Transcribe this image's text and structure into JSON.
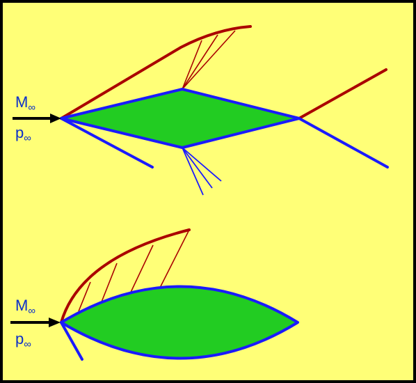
{
  "colors": {
    "background": "#ffff77",
    "border": "#000000",
    "body_fill": "#22cc22",
    "body_outline": "#1a1aff",
    "shock": "#aa0000",
    "expansion": "#1a1aff",
    "arrow": "#000000",
    "label": "#0b2fc9"
  },
  "panels": [
    {
      "id": "diamond-airfoil",
      "labels": {
        "mach_main": "M",
        "mach_sub": "∞",
        "pressure_main": "p",
        "pressure_sub": "∞"
      }
    },
    {
      "id": "biconvex-airfoil",
      "labels": {
        "mach_main": "M",
        "mach_sub": "∞",
        "pressure_main": "p",
        "pressure_sub": "∞"
      }
    }
  ]
}
